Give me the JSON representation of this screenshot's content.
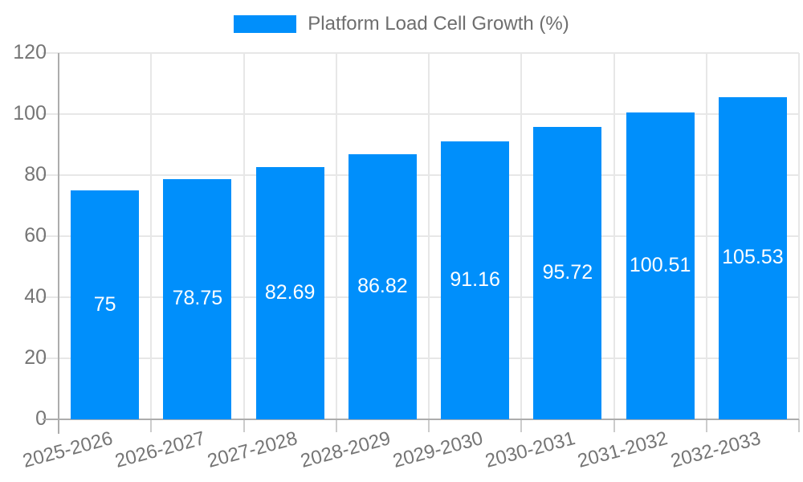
{
  "chart_data": {
    "type": "bar",
    "title": "",
    "legend": {
      "label": "Platform Load Cell Growth (%)",
      "position": "top"
    },
    "categories": [
      "2025-2026",
      "2026-2027",
      "2027-2028",
      "2028-2029",
      "2029-2030",
      "2030-2031",
      "2031-2032",
      "2032-2033"
    ],
    "series": [
      {
        "name": "Platform Load Cell Growth (%)",
        "values": [
          75,
          78.75,
          82.69,
          86.82,
          91.16,
          95.72,
          100.51,
          105.53
        ],
        "value_labels": [
          "75",
          "78.75",
          "82.69",
          "86.82",
          "91.16",
          "95.72",
          "100.51",
          "105.53"
        ]
      }
    ],
    "xlabel": "",
    "ylabel": "",
    "ylim": [
      0,
      120
    ],
    "y_ticks": [
      0,
      20,
      40,
      60,
      80,
      100,
      120
    ],
    "grid": true,
    "x_label_rotation_deg": -15,
    "colors": {
      "bar": "#008FFB",
      "gridline": "#e7e7e7",
      "axis": "#adadad",
      "x_tick": "#cccccc",
      "tick_label": "#757575",
      "legend_text": "#6e6e6e",
      "value_label": "#ffffff",
      "background": "#ffffff"
    }
  }
}
